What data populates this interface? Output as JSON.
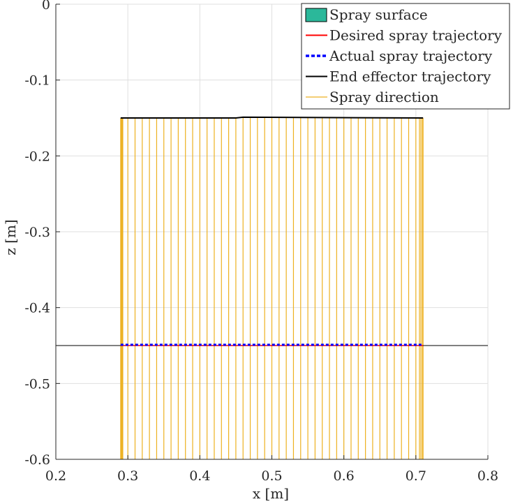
{
  "chart_data": {
    "type": "line",
    "title": "",
    "xlabel": "x [m]",
    "ylabel": "z [m]",
    "xlim": [
      0.2,
      0.8
    ],
    "ylim": [
      -0.6,
      0.0
    ],
    "grid": true,
    "legend_location": "top-right",
    "xticks": [
      0.2,
      0.3,
      0.4,
      0.5,
      0.6,
      0.7,
      0.8
    ],
    "xtick_labels": [
      "0.2",
      "0.3",
      "0.4",
      "0.5",
      "0.6",
      "0.7",
      "0.8"
    ],
    "yticks": [
      0,
      -0.1,
      -0.2,
      -0.3,
      -0.4,
      -0.5,
      -0.6
    ],
    "ytick_labels": [
      "0",
      "-0.1",
      "-0.2",
      "-0.3",
      "-0.4",
      "-0.5",
      "-0.6"
    ],
    "series": [
      {
        "name": "Spray surface",
        "kind": "line",
        "color": "#2bb89a",
        "edge_color": "#000000",
        "x": [
          0.2,
          0.8
        ],
        "y": [
          -0.45,
          -0.45
        ]
      },
      {
        "name": "Desired spray trajectory",
        "kind": "line",
        "color": "#ff0000",
        "x": [
          0.29,
          0.71
        ],
        "y": [
          -0.45,
          -0.45
        ]
      },
      {
        "name": "Actual spray trajectory",
        "kind": "line",
        "style": "dotted",
        "color": "#0000ff",
        "x": [
          0.29,
          0.71
        ],
        "y": [
          -0.449,
          -0.449
        ]
      },
      {
        "name": "End effector trajectory",
        "kind": "line",
        "color": "#000000",
        "x": [
          0.29,
          0.45,
          0.46,
          0.71
        ],
        "y": [
          -0.15,
          -0.15,
          -0.149,
          -0.15
        ]
      },
      {
        "name": "Spray direction",
        "kind": "vertical_segments",
        "color": "#edb120",
        "y_from": -0.15,
        "y_to": -0.6,
        "x": [
          0.29,
          0.291,
          0.292,
          0.293,
          0.3,
          0.31,
          0.32,
          0.33,
          0.34,
          0.35,
          0.36,
          0.37,
          0.38,
          0.39,
          0.4,
          0.41,
          0.42,
          0.43,
          0.44,
          0.45,
          0.46,
          0.47,
          0.48,
          0.49,
          0.5,
          0.51,
          0.52,
          0.53,
          0.54,
          0.55,
          0.56,
          0.57,
          0.58,
          0.59,
          0.6,
          0.61,
          0.62,
          0.63,
          0.64,
          0.65,
          0.66,
          0.67,
          0.68,
          0.69,
          0.7,
          0.705,
          0.707,
          0.709,
          0.71
        ]
      }
    ]
  }
}
